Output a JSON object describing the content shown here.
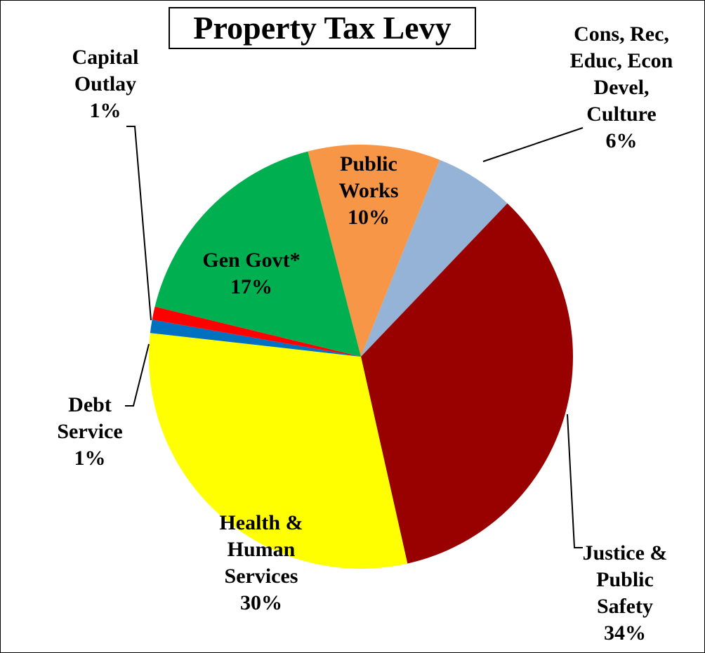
{
  "chart_data": {
    "type": "pie",
    "title": "Property Tax Levy",
    "categories": [
      "Public Works",
      "Cons, Rec, Educ, Econ Devel, Culture",
      "Justice & Public Safety",
      "Health & Human Services",
      "Debt Service",
      "Capital Outlay",
      "Gen Govt*"
    ],
    "values": [
      10,
      6,
      34,
      30,
      1,
      1,
      17
    ],
    "value_labels": [
      "10%",
      "6%",
      "34%",
      "30%",
      "1%",
      "1%",
      "17%"
    ],
    "colors": [
      "#f79646",
      "#95b3d7",
      "#990000",
      "#ffff00",
      "#0070c0",
      "#ff0000",
      "#00b050"
    ]
  }
}
